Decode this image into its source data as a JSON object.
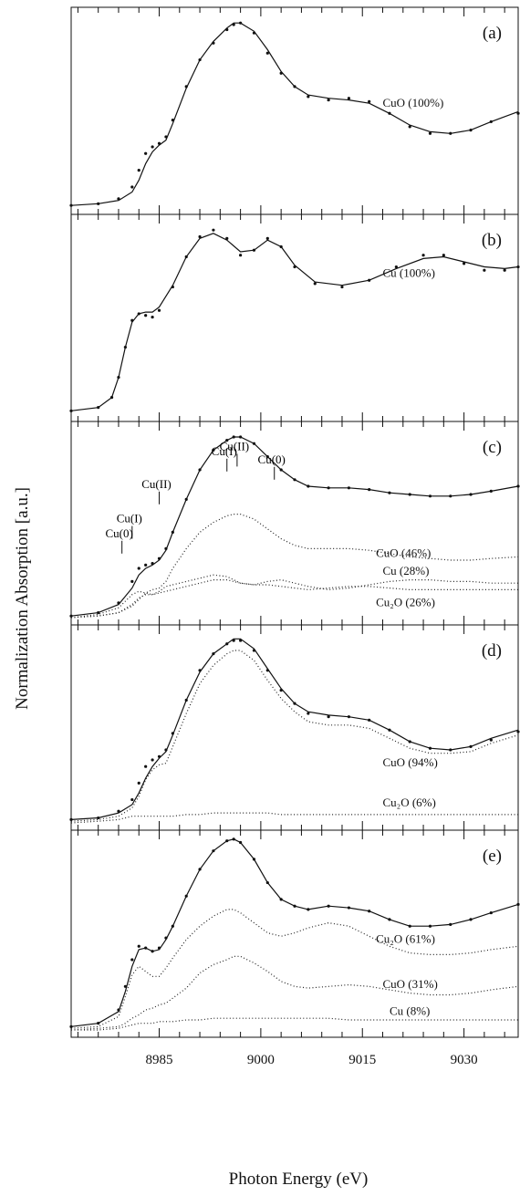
{
  "figure": {
    "x_axis_label": "Photon Energy (eV)",
    "y_axis_label": "Normalization Absorption [a.u.]",
    "x_ticks": [
      "8985",
      "9000",
      "9015",
      "9030"
    ]
  },
  "chart_data": [
    {
      "type": "line",
      "panel_label": "(a)",
      "xlim": [
        8972,
        9038
      ],
      "ylim": [
        0,
        1.15
      ],
      "x": [
        8972,
        8976,
        8979,
        8981,
        8982,
        8983,
        8984,
        8985,
        8986,
        8987,
        8989,
        8991,
        8993,
        8995,
        8996,
        8997,
        8999,
        9001,
        9003,
        9005,
        9007,
        9010,
        9013,
        9016,
        9019,
        9022,
        9025,
        9028,
        9031,
        9034,
        9038
      ],
      "series": [
        {
          "name": "",
          "style": "points",
          "values": [
            0.01,
            0.02,
            0.05,
            0.12,
            0.22,
            0.32,
            0.36,
            0.38,
            0.42,
            0.52,
            0.72,
            0.88,
            0.98,
            1.06,
            1.09,
            1.1,
            1.04,
            0.92,
            0.8,
            0.72,
            0.66,
            0.64,
            0.65,
            0.63,
            0.56,
            0.48,
            0.44,
            0.44,
            0.46,
            0.51,
            0.56
          ]
        },
        {
          "name": "",
          "style": "fit",
          "values": [
            0.01,
            0.02,
            0.04,
            0.09,
            0.16,
            0.26,
            0.33,
            0.37,
            0.4,
            0.5,
            0.71,
            0.88,
            0.99,
            1.07,
            1.1,
            1.1,
            1.05,
            0.94,
            0.81,
            0.72,
            0.67,
            0.65,
            0.64,
            0.62,
            0.56,
            0.49,
            0.45,
            0.44,
            0.46,
            0.51,
            0.57
          ]
        }
      ],
      "annotations": [
        {
          "text": "CuO (100%)",
          "x": 9018,
          "y": 0.6
        }
      ]
    },
    {
      "type": "line",
      "panel_label": "(b)",
      "xlim": [
        8972,
        9038
      ],
      "ylim": [
        0,
        1.15
      ],
      "x": [
        8972,
        8976,
        8978,
        8979,
        8980,
        8981,
        8982,
        8983,
        8984,
        8985,
        8987,
        8989,
        8991,
        8993,
        8995,
        8997,
        8999,
        9001,
        9003,
        9005,
        9008,
        9012,
        9016,
        9020,
        9024,
        9027,
        9030,
        9033,
        9036,
        9038
      ],
      "series": [
        {
          "name": "",
          "style": "points",
          "values": [
            0.02,
            0.04,
            0.1,
            0.22,
            0.4,
            0.56,
            0.6,
            0.59,
            0.58,
            0.62,
            0.76,
            0.94,
            1.06,
            1.1,
            1.05,
            0.95,
            0.98,
            1.05,
            1.0,
            0.88,
            0.78,
            0.76,
            0.8,
            0.88,
            0.95,
            0.95,
            0.9,
            0.86,
            0.86,
            0.88
          ]
        },
        {
          "name": "",
          "style": "fit",
          "values": [
            0.02,
            0.04,
            0.1,
            0.22,
            0.4,
            0.55,
            0.6,
            0.61,
            0.61,
            0.64,
            0.77,
            0.94,
            1.05,
            1.08,
            1.04,
            0.97,
            0.98,
            1.04,
            1.0,
            0.89,
            0.79,
            0.77,
            0.8,
            0.87,
            0.93,
            0.94,
            0.91,
            0.88,
            0.87,
            0.88
          ]
        }
      ],
      "annotations": [
        {
          "text": "Cu (100%)",
          "x": 9018,
          "y": 0.82
        }
      ]
    },
    {
      "type": "line",
      "panel_label": "(c)",
      "xlim": [
        8972,
        9038
      ],
      "ylim": [
        0,
        1.15
      ],
      "x": [
        8972,
        8976,
        8979,
        8981,
        8982,
        8983,
        8984,
        8985,
        8986,
        8987,
        8989,
        8991,
        8993,
        8995,
        8996,
        8997,
        8999,
        9001,
        9003,
        9005,
        9007,
        9010,
        9013,
        9016,
        9019,
        9022,
        9025,
        9028,
        9031,
        9034,
        9038
      ],
      "series": [
        {
          "name": "",
          "style": "points",
          "values": [
            0.01,
            0.03,
            0.09,
            0.22,
            0.3,
            0.32,
            0.33,
            0.36,
            0.42,
            0.52,
            0.72,
            0.9,
            1.02,
            1.08,
            1.1,
            1.1,
            1.06,
            0.98,
            0.9,
            0.84,
            0.8,
            0.79,
            0.79,
            0.78,
            0.76,
            0.75,
            0.74,
            0.74,
            0.75,
            0.77,
            0.8
          ]
        },
        {
          "name": "",
          "style": "fit",
          "values": [
            0.01,
            0.03,
            0.08,
            0.18,
            0.26,
            0.3,
            0.32,
            0.35,
            0.41,
            0.52,
            0.72,
            0.9,
            1.02,
            1.08,
            1.1,
            1.1,
            1.06,
            0.98,
            0.9,
            0.84,
            0.8,
            0.79,
            0.79,
            0.78,
            0.76,
            0.75,
            0.74,
            0.74,
            0.75,
            0.77,
            0.8
          ]
        },
        {
          "name": "",
          "style": "component",
          "values": [
            0.0,
            0.01,
            0.03,
            0.07,
            0.11,
            0.15,
            0.17,
            0.18,
            0.22,
            0.3,
            0.42,
            0.52,
            0.58,
            0.62,
            0.63,
            0.63,
            0.6,
            0.54,
            0.48,
            0.44,
            0.42,
            0.42,
            0.42,
            0.41,
            0.39,
            0.37,
            0.36,
            0.35,
            0.35,
            0.36,
            0.37
          ]
        },
        {
          "name": "",
          "style": "component",
          "values": [
            0.0,
            0.02,
            0.06,
            0.14,
            0.16,
            0.15,
            0.14,
            0.16,
            0.19,
            0.2,
            0.22,
            0.24,
            0.26,
            0.25,
            0.23,
            0.21,
            0.2,
            0.2,
            0.19,
            0.18,
            0.17,
            0.18,
            0.19,
            0.19,
            0.18,
            0.17,
            0.17,
            0.17,
            0.17,
            0.17,
            0.17
          ]
        },
        {
          "name": "",
          "style": "component",
          "values": [
            0.0,
            0.01,
            0.03,
            0.08,
            0.12,
            0.14,
            0.14,
            0.15,
            0.16,
            0.17,
            0.19,
            0.21,
            0.23,
            0.23,
            0.22,
            0.21,
            0.2,
            0.22,
            0.23,
            0.21,
            0.19,
            0.17,
            0.18,
            0.2,
            0.22,
            0.23,
            0.23,
            0.22,
            0.22,
            0.21,
            0.21
          ]
        }
      ],
      "annotations": [
        {
          "text": "CuO (46%)",
          "x": 9017,
          "y": 0.37
        },
        {
          "text": "Cu (28%)",
          "x": 9018,
          "y": 0.26
        },
        {
          "text": "Cu₂O (26%)",
          "x": 9017,
          "y": 0.07
        }
      ],
      "edge_markers": [
        {
          "text": "Cu(0)",
          "x": 8979.5,
          "y": 0.49
        },
        {
          "text": "Cu(I)",
          "x": 8981.0,
          "y": 0.58
        },
        {
          "text": "Cu(II)",
          "x": 8985.0,
          "y": 0.79
        },
        {
          "text": "Cu(I)",
          "x": 8995.0,
          "y": 0.99
        },
        {
          "text": "Cu(II)",
          "x": 8996.5,
          "y": 1.02
        },
        {
          "text": "Cu(0)",
          "x": 9002.0,
          "y": 0.94
        }
      ]
    },
    {
      "type": "line",
      "panel_label": "(d)",
      "xlim": [
        8972,
        9038
      ],
      "ylim": [
        0,
        1.15
      ],
      "x": [
        8972,
        8976,
        8979,
        8981,
        8982,
        8983,
        8984,
        8985,
        8986,
        8987,
        8989,
        8991,
        8993,
        8995,
        8996,
        8997,
        8999,
        9001,
        9003,
        9005,
        9007,
        9010,
        9013,
        9016,
        9019,
        9022,
        9025,
        9028,
        9031,
        9034,
        9038
      ],
      "series": [
        {
          "name": "",
          "style": "points",
          "values": [
            0.02,
            0.03,
            0.07,
            0.14,
            0.24,
            0.34,
            0.38,
            0.4,
            0.44,
            0.54,
            0.74,
            0.92,
            1.02,
            1.08,
            1.1,
            1.1,
            1.04,
            0.92,
            0.8,
            0.72,
            0.66,
            0.64,
            0.64,
            0.62,
            0.56,
            0.49,
            0.45,
            0.44,
            0.46,
            0.5,
            0.55
          ]
        },
        {
          "name": "",
          "style": "fit",
          "values": [
            0.02,
            0.03,
            0.06,
            0.11,
            0.18,
            0.27,
            0.34,
            0.39,
            0.43,
            0.53,
            0.74,
            0.91,
            1.02,
            1.08,
            1.11,
            1.11,
            1.05,
            0.93,
            0.81,
            0.72,
            0.67,
            0.65,
            0.64,
            0.62,
            0.56,
            0.49,
            0.45,
            0.44,
            0.46,
            0.51,
            0.56
          ]
        },
        {
          "name": "",
          "style": "component",
          "values": [
            0.01,
            0.02,
            0.04,
            0.09,
            0.16,
            0.26,
            0.32,
            0.35,
            0.36,
            0.46,
            0.66,
            0.84,
            0.95,
            1.02,
            1.04,
            1.04,
            0.98,
            0.86,
            0.75,
            0.67,
            0.61,
            0.59,
            0.59,
            0.57,
            0.51,
            0.45,
            0.42,
            0.42,
            0.43,
            0.48,
            0.53
          ]
        },
        {
          "name": "",
          "style": "component",
          "values": [
            0.0,
            0.01,
            0.02,
            0.04,
            0.04,
            0.04,
            0.04,
            0.04,
            0.04,
            0.04,
            0.05,
            0.05,
            0.06,
            0.06,
            0.06,
            0.06,
            0.06,
            0.06,
            0.05,
            0.05,
            0.05,
            0.05,
            0.05,
            0.05,
            0.05,
            0.05,
            0.05,
            0.05,
            0.05,
            0.05,
            0.05
          ]
        }
      ],
      "annotations": [
        {
          "text": "CuO (94%)",
          "x": 9018,
          "y": 0.34
        },
        {
          "text": "Cu₂O (6%)",
          "x": 9018,
          "y": 0.1
        }
      ]
    },
    {
      "type": "line",
      "panel_label": "(e)",
      "xlim": [
        8972,
        9038
      ],
      "ylim": [
        0,
        1.15
      ],
      "x": [
        8972,
        8976,
        8979,
        8980,
        8981,
        8982,
        8983,
        8984,
        8985,
        8986,
        8987,
        8989,
        8991,
        8993,
        8995,
        8996,
        8997,
        8999,
        9001,
        9003,
        9005,
        9007,
        9010,
        9013,
        9016,
        9019,
        9022,
        9025,
        9028,
        9031,
        9034,
        9038
      ],
      "series": [
        {
          "name": "",
          "style": "points",
          "values": [
            0.02,
            0.04,
            0.12,
            0.26,
            0.42,
            0.5,
            0.49,
            0.47,
            0.49,
            0.55,
            0.62,
            0.8,
            0.96,
            1.07,
            1.13,
            1.14,
            1.12,
            1.02,
            0.88,
            0.78,
            0.74,
            0.72,
            0.74,
            0.73,
            0.71,
            0.66,
            0.62,
            0.62,
            0.63,
            0.66,
            0.7,
            0.75
          ]
        },
        {
          "name": "",
          "style": "fit",
          "values": [
            0.02,
            0.04,
            0.11,
            0.23,
            0.38,
            0.48,
            0.49,
            0.47,
            0.48,
            0.54,
            0.62,
            0.8,
            0.96,
            1.07,
            1.13,
            1.14,
            1.12,
            1.02,
            0.88,
            0.78,
            0.74,
            0.72,
            0.74,
            0.73,
            0.71,
            0.66,
            0.62,
            0.62,
            0.63,
            0.66,
            0.7,
            0.75
          ]
        },
        {
          "name": "",
          "style": "component",
          "values": [
            0.01,
            0.02,
            0.08,
            0.2,
            0.33,
            0.38,
            0.35,
            0.32,
            0.32,
            0.37,
            0.43,
            0.54,
            0.62,
            0.68,
            0.72,
            0.72,
            0.7,
            0.64,
            0.58,
            0.56,
            0.58,
            0.61,
            0.64,
            0.62,
            0.56,
            0.5,
            0.46,
            0.45,
            0.45,
            0.46,
            0.48,
            0.5
          ]
        },
        {
          "name": "",
          "style": "component",
          "values": [
            0.0,
            0.01,
            0.02,
            0.04,
            0.07,
            0.09,
            0.12,
            0.13,
            0.15,
            0.16,
            0.19,
            0.25,
            0.34,
            0.39,
            0.42,
            0.44,
            0.44,
            0.4,
            0.35,
            0.29,
            0.26,
            0.25,
            0.26,
            0.27,
            0.26,
            0.24,
            0.22,
            0.21,
            0.21,
            0.22,
            0.24,
            0.26
          ]
        },
        {
          "name": "",
          "style": "component",
          "values": [
            0.0,
            0.0,
            0.01,
            0.02,
            0.03,
            0.04,
            0.04,
            0.04,
            0.05,
            0.05,
            0.05,
            0.06,
            0.06,
            0.07,
            0.07,
            0.07,
            0.07,
            0.07,
            0.07,
            0.07,
            0.07,
            0.07,
            0.07,
            0.06,
            0.06,
            0.06,
            0.06,
            0.06,
            0.06,
            0.06,
            0.06,
            0.06
          ]
        }
      ],
      "annotations": [
        {
          "text": "Cu₂O (61%)",
          "x": 9017,
          "y": 0.52
        },
        {
          "text": "CuO (31%)",
          "x": 9018,
          "y": 0.25
        },
        {
          "text": "Cu (8%)",
          "x": 9019,
          "y": 0.09
        }
      ]
    }
  ]
}
